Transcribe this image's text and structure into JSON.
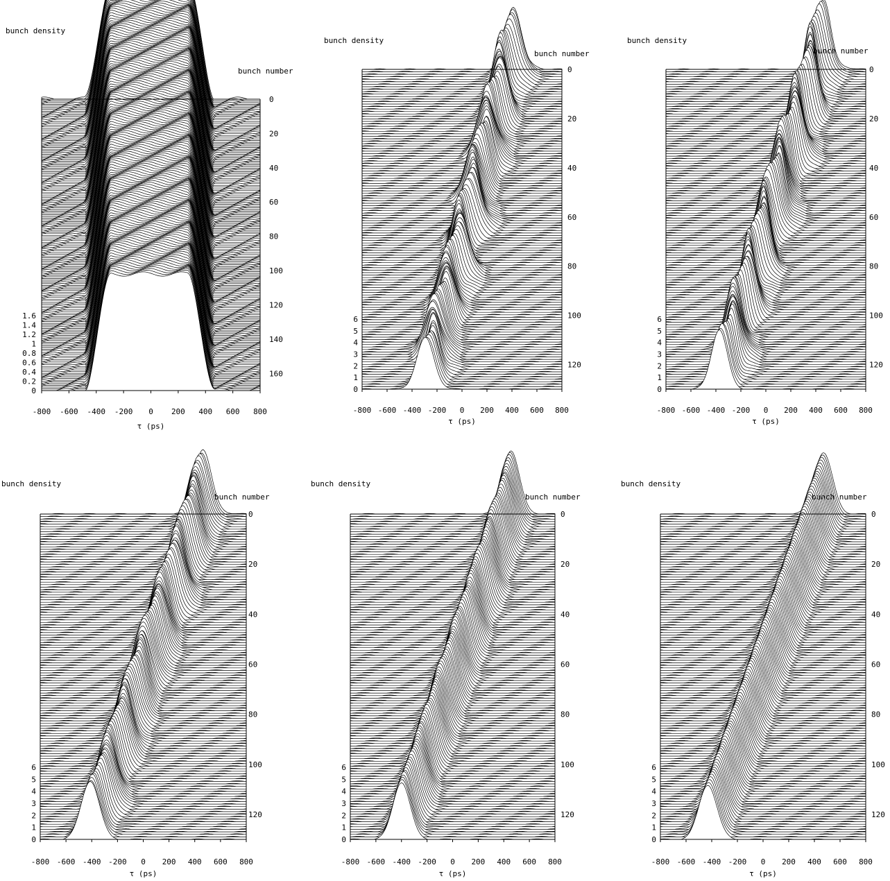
{
  "figure": {
    "layout": "2x3 grid of waterfall plots"
  },
  "chart_data": [
    {
      "type": "line",
      "variant": "waterfall",
      "ylabel": "bunch density",
      "zlabel": "bunch number",
      "xlabel": "τ (ps)",
      "x_ticks": [
        "-800",
        "-600",
        "-400",
        "-200",
        "0",
        "200",
        "400",
        "600",
        "800"
      ],
      "xlim": [
        -800,
        800
      ],
      "density_ticks": [
        "0",
        "0.2",
        "0.4",
        "0.6",
        "0.8",
        "1",
        "1.2",
        "1.4",
        "1.6"
      ],
      "density_lim": [
        0,
        1.6
      ],
      "bunch_ticks": [
        "0",
        "20",
        "40",
        "60",
        "80",
        "100",
        "120",
        "140",
        "160"
      ],
      "bunch_lim": [
        0,
        170
      ],
      "profile": {
        "shape": "flat-top",
        "width_ps": 380,
        "edge_ps": 100,
        "start_center_ps": -10,
        "end_center_ps": -10,
        "peak_density": 1.6
      },
      "n_traces": 170,
      "line_color": "#000000"
    },
    {
      "type": "line",
      "variant": "waterfall",
      "ylabel": "bunch density",
      "zlabel": "bunch number",
      "xlabel": "τ (ps)",
      "x_ticks": [
        "-800",
        "-600",
        "-400",
        "-200",
        "0",
        "200",
        "400",
        "600",
        "800"
      ],
      "xlim": [
        -800,
        800
      ],
      "density_ticks": [
        "0",
        "1",
        "2",
        "3",
        "4",
        "5",
        "6"
      ],
      "density_lim": [
        0,
        6
      ],
      "bunch_ticks": [
        "0",
        "20",
        "40",
        "60",
        "80",
        "100",
        "120"
      ],
      "bunch_lim": [
        0,
        130
      ],
      "profile": {
        "shape": "gaussian",
        "sigma_ps": 60,
        "start_center_ps": -290,
        "end_center_ps": 390,
        "start_peak": 4.3,
        "end_peak": 5.5,
        "instability": "strong"
      },
      "n_traces": 130,
      "line_color": "#000000"
    },
    {
      "type": "line",
      "variant": "waterfall",
      "ylabel": "bunch density",
      "zlabel": "bunch number",
      "xlabel": "τ (ps)",
      "x_ticks": [
        "-800",
        "-600",
        "-400",
        "-200",
        "0",
        "200",
        "400",
        "600",
        "800"
      ],
      "xlim": [
        -800,
        800
      ],
      "density_ticks": [
        "0",
        "1",
        "2",
        "3",
        "4",
        "5",
        "6"
      ],
      "density_lim": [
        0,
        6
      ],
      "bunch_ticks": [
        "0",
        "20",
        "40",
        "60",
        "80",
        "100",
        "120"
      ],
      "bunch_lim": [
        0,
        130
      ],
      "profile": {
        "shape": "gaussian",
        "sigma_ps": 55,
        "start_center_ps": -350,
        "end_center_ps": 440,
        "start_peak": 5.2,
        "end_peak": 6.2,
        "instability": "strong"
      },
      "n_traces": 130,
      "line_color": "#000000"
    },
    {
      "type": "line",
      "variant": "waterfall",
      "ylabel": "bunch density",
      "zlabel": "bunch number",
      "xlabel": "τ (ps)",
      "x_ticks": [
        "-800",
        "-600",
        "-400",
        "-200",
        "0",
        "200",
        "400",
        "600",
        "800"
      ],
      "xlim": [
        -800,
        800
      ],
      "density_ticks": [
        "0",
        "1",
        "2",
        "3",
        "4",
        "5",
        "6"
      ],
      "density_lim": [
        0,
        6
      ],
      "bunch_ticks": [
        "0",
        "20",
        "40",
        "60",
        "80",
        "100",
        "120"
      ],
      "bunch_lim": [
        0,
        130
      ],
      "profile": {
        "shape": "gaussian",
        "sigma_ps": 65,
        "start_center_ps": -400,
        "end_center_ps": 460,
        "start_peak": 5.0,
        "end_peak": 5.6,
        "instability": "moderate"
      },
      "n_traces": 130,
      "line_color": "#000000"
    },
    {
      "type": "line",
      "variant": "waterfall",
      "ylabel": "bunch density",
      "zlabel": "bunch number",
      "xlabel": "τ (ps)",
      "x_ticks": [
        "-800",
        "-600",
        "-400",
        "-200",
        "0",
        "200",
        "400",
        "600",
        "800"
      ],
      "xlim": [
        -800,
        800
      ],
      "density_ticks": [
        "0",
        "1",
        "2",
        "3",
        "4",
        "5",
        "6"
      ],
      "density_lim": [
        0,
        6
      ],
      "bunch_ticks": [
        "0",
        "20",
        "40",
        "60",
        "80",
        "100",
        "120"
      ],
      "bunch_lim": [
        0,
        130
      ],
      "profile": {
        "shape": "gaussian",
        "sigma_ps": 65,
        "start_center_ps": -400,
        "end_center_ps": 460,
        "start_peak": 5.0,
        "end_peak": 5.6,
        "instability": "weak"
      },
      "n_traces": 130,
      "line_color": "#000000"
    },
    {
      "type": "line",
      "variant": "waterfall",
      "ylabel": "bunch density",
      "zlabel": "bunch number",
      "xlabel": "τ (ps)",
      "x_ticks": [
        "-800",
        "-600",
        "-400",
        "-200",
        "0",
        "200",
        "400",
        "600",
        "800"
      ],
      "xlim": [
        -800,
        800
      ],
      "density_ticks": [
        "0",
        "1",
        "2",
        "3",
        "4",
        "5",
        "6"
      ],
      "density_lim": [
        0,
        6
      ],
      "bunch_ticks": [
        "0",
        "20",
        "40",
        "60",
        "80",
        "100",
        "120"
      ],
      "bunch_lim": [
        0,
        130
      ],
      "profile": {
        "shape": "gaussian",
        "sigma_ps": 70,
        "start_center_ps": -430,
        "end_center_ps": 470,
        "start_peak": 4.8,
        "end_peak": 5.4,
        "instability": "none"
      },
      "n_traces": 130,
      "line_color": "#000000"
    }
  ]
}
